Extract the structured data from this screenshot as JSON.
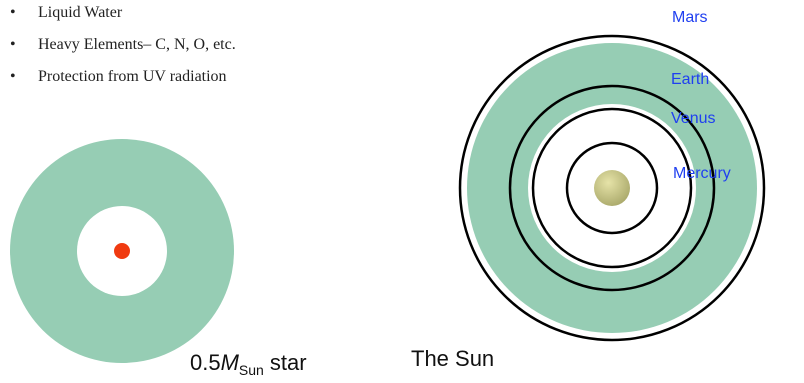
{
  "bullets": [
    "Liquid Water",
    "Heavy Elements– C, N, O, etc.",
    "Protection from UV radiation"
  ],
  "planets": [
    "Mars",
    "Earth",
    "Venus",
    "Mercury"
  ],
  "captions": {
    "small_star": {
      "prefix": "0.5",
      "symbol": "M",
      "subscript": "Sun",
      "suffix": "star"
    },
    "sun": "The Sun"
  }
}
